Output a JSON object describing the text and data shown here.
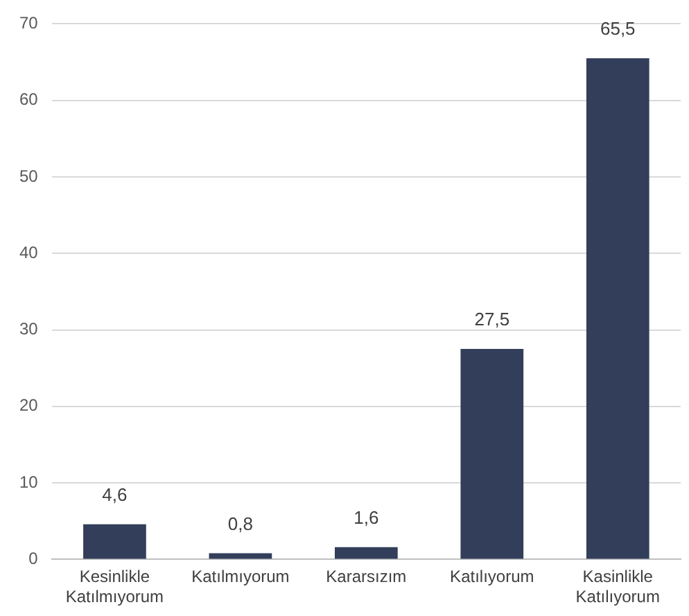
{
  "chart_data": {
    "type": "bar",
    "categories": [
      "Kesinlikle Katılmıyorum",
      "Katılmıyorum",
      "Kararsızım",
      "Katılıyorum",
      "Kasinlikle Katılıyorum"
    ],
    "values": [
      4.6,
      0.8,
      1.6,
      27.5,
      65.5
    ],
    "value_labels": [
      "4,6",
      "0,8",
      "1,6",
      "27,5",
      "65,5"
    ],
    "color": "#333f5a",
    "ylim": [
      0,
      70
    ],
    "yticks": [
      0,
      10,
      20,
      30,
      40,
      50,
      60,
      70
    ],
    "grid": "y"
  }
}
